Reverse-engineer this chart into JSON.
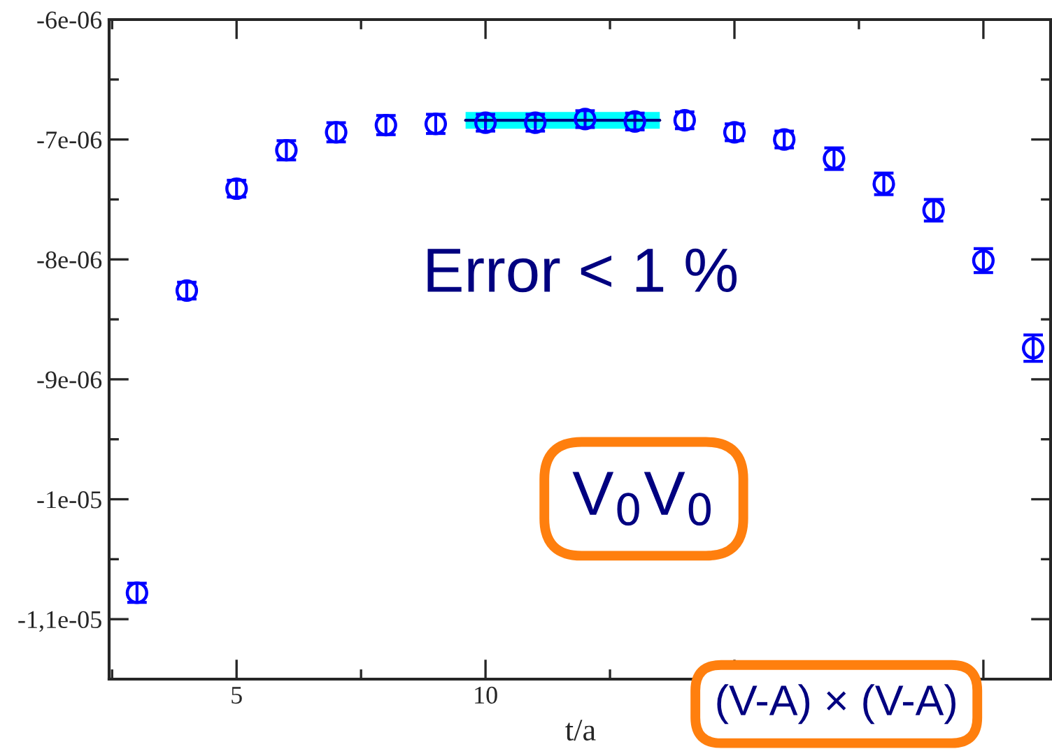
{
  "chart_data": {
    "type": "scatter",
    "x": [
      3,
      4,
      5,
      6,
      7,
      8,
      9,
      10,
      11,
      12,
      13,
      14,
      15,
      16,
      17,
      18,
      19,
      20,
      21
    ],
    "xlabel": "t/a",
    "series": [
      {
        "color": "#0000ff",
        "marker": "circle",
        "values": [
          -1.078e-05,
          -8.26e-06,
          -7.41e-06,
          -7.09e-06,
          -6.94e-06,
          -6.88e-06,
          -6.87e-06,
          -6.86e-06,
          -6.86e-06,
          -6.83e-06,
          -6.85e-06,
          -6.84e-06,
          -6.94e-06,
          -7e-06,
          -7.16e-06,
          -7.37e-06,
          -7.59e-06,
          -8.01e-06,
          -8.74e-06
        ],
        "errors": [
          8e-08,
          7e-08,
          7e-08,
          8e-08,
          8e-08,
          8e-08,
          8e-08,
          7e-08,
          7e-08,
          7e-08,
          7e-08,
          7e-08,
          7e-08,
          7e-08,
          9e-08,
          9e-08,
          9e-08,
          1e-07,
          1.1e-07
        ]
      },
      {
        "type": "line",
        "color": "#000080",
        "x": [
          9.6,
          13.5
        ],
        "values": [
          -6.84e-06,
          -6.84e-06
        ],
        "lower": [
          -6.91e-06,
          -6.91e-06
        ],
        "upper": [
          -6.77e-06,
          -6.77e-06
        ]
      }
    ],
    "xlim": [
      2.44,
      21.35
    ],
    "ylim": [
      -1.15e-05,
      -6e-06
    ],
    "xticks": [
      5,
      10,
      {
        "value": 15,
        "label": null
      },
      {
        "value": 20,
        "label": null
      }
    ],
    "yticks": [
      {
        "value": -6e-06,
        "label": "-6e-06"
      },
      {
        "value": -7e-06,
        "label": "-7e-06"
      },
      {
        "value": -8e-06,
        "label": "-8e-06"
      },
      {
        "value": -9e-06,
        "label": "-9e-06"
      },
      {
        "value": -1e-05,
        "label": "-1e-05"
      },
      {
        "value": -1.1e-05,
        "label": "-1,1e-05"
      }
    ],
    "annotations": [
      "Error < 1 %",
      "V$_{0}$V$_{0}$",
      "(V-A) × (V-A)"
    ],
    "grid": false,
    "legend": false
  }
}
